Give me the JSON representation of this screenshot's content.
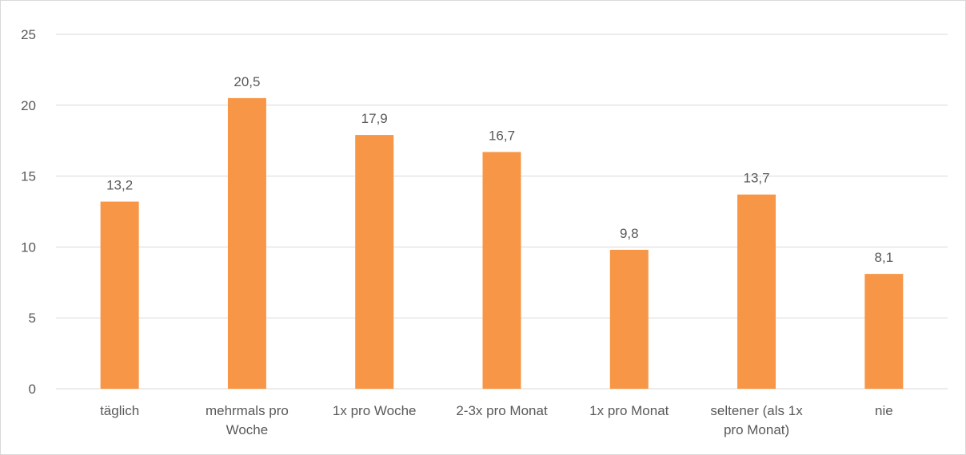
{
  "chart_data": {
    "type": "bar",
    "categories": [
      "täglich",
      "mehrmals pro Woche",
      "1x pro Woche",
      "2-3x pro Monat",
      "1x pro Monat",
      "seltener (als 1x pro Monat)",
      "nie"
    ],
    "values": [
      13.2,
      20.5,
      17.9,
      16.7,
      9.8,
      13.7,
      8.1
    ],
    "value_labels": [
      "13,2",
      "20,5",
      "17,9",
      "16,7",
      "9,8",
      "13,7",
      "8,1"
    ],
    "color": "#f79646",
    "ylim": [
      0,
      25
    ],
    "yticks": [
      0,
      5,
      10,
      15,
      20,
      25
    ],
    "grid": true
  }
}
